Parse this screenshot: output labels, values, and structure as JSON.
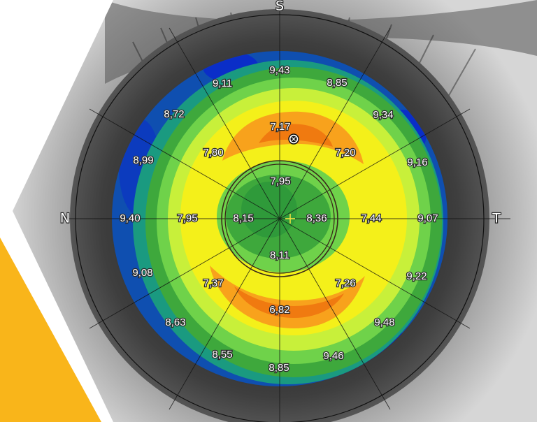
{
  "orientation": {
    "superior": "S",
    "nasal": "N",
    "temporal": "T"
  },
  "map_values": [
    {
      "id": "r0",
      "value": "9,43"
    },
    {
      "id": "r1",
      "value": "9,11"
    },
    {
      "id": "r2",
      "value": "8,85"
    },
    {
      "id": "r3",
      "value": "8,72"
    },
    {
      "id": "r4",
      "value": "9,34"
    },
    {
      "id": "r5",
      "value": "7,17"
    },
    {
      "id": "r6",
      "value": "8,99"
    },
    {
      "id": "r7",
      "value": "7,80"
    },
    {
      "id": "r8",
      "value": "7,20"
    },
    {
      "id": "r9",
      "value": "9,16"
    },
    {
      "id": "r10",
      "value": "7,95"
    },
    {
      "id": "r11",
      "value": "9,40"
    },
    {
      "id": "r12",
      "value": "7,95"
    },
    {
      "id": "r13",
      "value": "8,15"
    },
    {
      "id": "r14",
      "value": "8,36"
    },
    {
      "id": "r15",
      "value": "7,44"
    },
    {
      "id": "r16",
      "value": "9,07"
    },
    {
      "id": "r17",
      "value": "8,11"
    },
    {
      "id": "r18",
      "value": "9,08"
    },
    {
      "id": "r19",
      "value": "7,37"
    },
    {
      "id": "r20",
      "value": "7,26"
    },
    {
      "id": "r21",
      "value": "9,22"
    },
    {
      "id": "r22",
      "value": "6,82"
    },
    {
      "id": "r23",
      "value": "8,63"
    },
    {
      "id": "r24",
      "value": "9,48"
    },
    {
      "id": "r25",
      "value": "8,55"
    },
    {
      "id": "r26",
      "value": "9,46"
    },
    {
      "id": "r27",
      "value": "8,85"
    }
  ],
  "colors": {
    "accent_triangle": "#f9b51a",
    "map_blue": "#0f4fb0",
    "map_dark_blue": "#0a2ec8",
    "map_teal": "#1a9a80",
    "map_green": "#3ea83c",
    "map_light_green": "#6fd24a",
    "map_yellow_green": "#c8f03a",
    "map_yellow": "#f4f01a",
    "map_orange": "#f8a21c",
    "map_dark_orange": "#f07a10",
    "center_cross": "#f0e040"
  },
  "icons": {
    "apex_marker": "circle-x-marker-icon",
    "center_marker": "plus-cross-icon"
  }
}
